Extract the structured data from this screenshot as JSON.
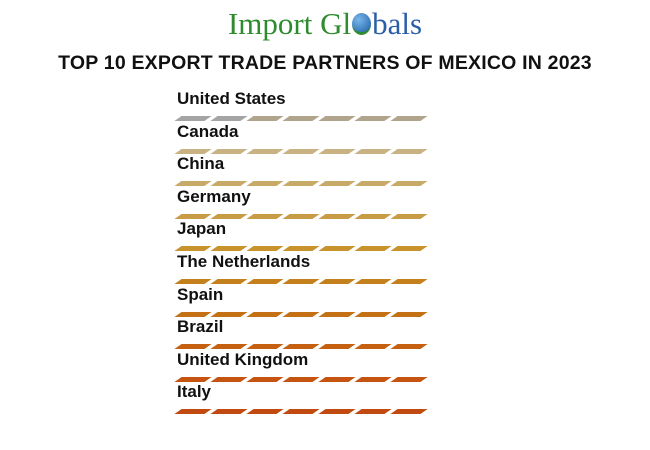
{
  "logo": {
    "text_part1": "Import Gl",
    "text_part2": "bals"
  },
  "title": "TOP 10 EXPORT TRADE PARTNERS OF MEXICO IN 2023",
  "partners": [
    {
      "name": "United States",
      "color": "#b0a48c"
    },
    {
      "name": "Canada",
      "color": "#c8b282"
    },
    {
      "name": "China",
      "color": "#c8aa68"
    },
    {
      "name": "Germany",
      "color": "#c89c44"
    },
    {
      "name": "Japan",
      "color": "#c8922c"
    },
    {
      "name": "The Netherlands",
      "color": "#c4801c"
    },
    {
      "name": "Spain",
      "color": "#c47014"
    },
    {
      "name": "Brazil",
      "color": "#c46010"
    },
    {
      "name": "United Kingdom",
      "color": "#c45410"
    },
    {
      "name": "Italy",
      "color": "#c04a10"
    }
  ]
}
